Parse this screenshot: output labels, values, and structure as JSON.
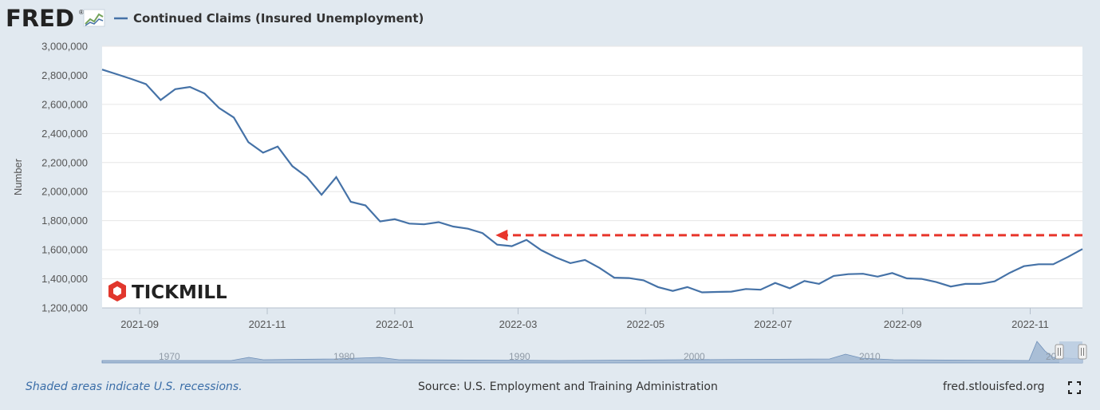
{
  "header": {
    "logo_text": "FRED",
    "logo_reg": "®",
    "series_title": "Continued Claims (Insured Unemployment)"
  },
  "footer": {
    "recession_note": "Shaded areas indicate U.S. recessions.",
    "source": "Source: U.S. Employment and Training Administration",
    "site": "fred.stlouisfed.org",
    "fullscreen_icon": "expand-icon"
  },
  "watermark": {
    "brand": "TICKMILL",
    "icon": "tickmill-hexagon-icon",
    "color": "#e1372d"
  },
  "navigator": {
    "decade_labels": [
      "1970",
      "1980",
      "1990",
      "2000",
      "2010",
      "20"
    ]
  },
  "annotation": {
    "type": "dashed-arrow",
    "color": "#e8352b",
    "y_value": 1700000,
    "x_from": "2022-11-26",
    "x_to": "2022-02-19"
  },
  "chart_data": {
    "type": "line",
    "title": "Continued Claims (Insured Unemployment)",
    "xlabel": "",
    "ylabel": "Number",
    "ylim": [
      1200000,
      3000000
    ],
    "yticks": [
      1200000,
      1400000,
      1600000,
      1800000,
      2000000,
      2200000,
      2400000,
      2600000,
      2800000,
      3000000
    ],
    "ytick_labels": [
      "1,200,000",
      "1,400,000",
      "1,600,000",
      "1,800,000",
      "2,000,000",
      "2,200,000",
      "2,400,000",
      "2,600,000",
      "2,800,000",
      "3,000,000"
    ],
    "xlim": [
      "2021-08-14",
      "2022-11-26"
    ],
    "xticks": [
      "2021-09-01",
      "2021-11-01",
      "2022-01-01",
      "2022-03-01",
      "2022-05-01",
      "2022-07-01",
      "2022-09-01",
      "2022-11-01"
    ],
    "xtick_labels": [
      "2021-09",
      "2021-11",
      "2022-01",
      "2022-03",
      "2022-05",
      "2022-07",
      "2022-09",
      "2022-11"
    ],
    "grid": true,
    "legend_position": "top-left",
    "line_color": "#4572a7",
    "series": [
      {
        "name": "Continued Claims (Insured Unemployment)",
        "x": [
          "2021-08-14",
          "2021-08-21",
          "2021-08-28",
          "2021-09-04",
          "2021-09-11",
          "2021-09-18",
          "2021-09-25",
          "2021-10-02",
          "2021-10-09",
          "2021-10-16",
          "2021-10-23",
          "2021-10-30",
          "2021-11-06",
          "2021-11-13",
          "2021-11-20",
          "2021-11-27",
          "2021-12-04",
          "2021-12-11",
          "2021-12-18",
          "2021-12-25",
          "2022-01-01",
          "2022-01-08",
          "2022-01-15",
          "2022-01-22",
          "2022-01-29",
          "2022-02-05",
          "2022-02-12",
          "2022-02-19",
          "2022-02-26",
          "2022-03-05",
          "2022-03-12",
          "2022-03-19",
          "2022-03-26",
          "2022-04-02",
          "2022-04-09",
          "2022-04-16",
          "2022-04-23",
          "2022-04-30",
          "2022-05-07",
          "2022-05-14",
          "2022-05-21",
          "2022-05-28",
          "2022-06-04",
          "2022-06-11",
          "2022-06-18",
          "2022-06-25",
          "2022-07-02",
          "2022-07-09",
          "2022-07-16",
          "2022-07-23",
          "2022-07-30",
          "2022-08-06",
          "2022-08-13",
          "2022-08-20",
          "2022-08-27",
          "2022-09-03",
          "2022-09-10",
          "2022-09-17",
          "2022-09-24",
          "2022-10-01",
          "2022-10-08",
          "2022-10-15",
          "2022-10-22",
          "2022-10-29",
          "2022-11-05",
          "2022-11-12",
          "2022-11-19",
          "2022-11-26"
        ],
        "values": [
          2840000,
          2808000,
          2775000,
          2740000,
          2630000,
          2705000,
          2720000,
          2675000,
          2575000,
          2510000,
          2340000,
          2268000,
          2310000,
          2175000,
          2100000,
          1978000,
          2100000,
          1930000,
          1905000,
          1795000,
          1810000,
          1780000,
          1775000,
          1790000,
          1760000,
          1745000,
          1715000,
          1635000,
          1625000,
          1668000,
          1598000,
          1548000,
          1508000,
          1530000,
          1475000,
          1408000,
          1405000,
          1390000,
          1343000,
          1317000,
          1343000,
          1307000,
          1310000,
          1312000,
          1330000,
          1325000,
          1372000,
          1335000,
          1385000,
          1365000,
          1420000,
          1432000,
          1435000,
          1415000,
          1440000,
          1403000,
          1400000,
          1378000,
          1347000,
          1365000,
          1365000,
          1383000,
          1440000,
          1487000,
          1500000,
          1500000,
          1550000,
          1605000
        ]
      }
    ]
  }
}
